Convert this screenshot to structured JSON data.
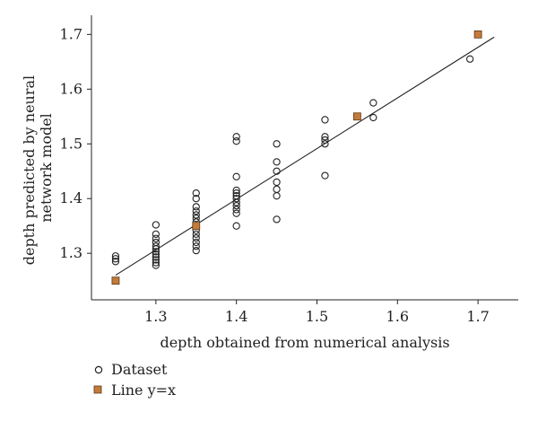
{
  "chart_data": {
    "type": "scatter",
    "xlabel": "depth obtained from numerical analysis",
    "ylabel_lines": [
      "depth predicted by neural",
      "network model"
    ],
    "xlim": [
      1.22,
      1.75
    ],
    "ylim": [
      1.215,
      1.735
    ],
    "xticks": [
      "1.3",
      "1.4",
      "1.5",
      "1.6",
      "1.7"
    ],
    "yticks": [
      "1.3",
      "1.4",
      "1.5",
      "1.6",
      "1.7"
    ],
    "grid": false,
    "legend_position": "bottom-left, below plot",
    "colors": {
      "line_marker": "#c47a3a",
      "line_marker_edge": "#5a3a1a",
      "dataset_edge": "#222222",
      "axis": "#222222"
    },
    "series": [
      {
        "name": "Dataset",
        "marker": "open-circle",
        "points": [
          [
            1.25,
            1.285
          ],
          [
            1.25,
            1.29
          ],
          [
            1.25,
            1.295
          ],
          [
            1.3,
            1.278
          ],
          [
            1.3,
            1.283
          ],
          [
            1.3,
            1.288
          ],
          [
            1.3,
            1.293
          ],
          [
            1.3,
            1.298
          ],
          [
            1.3,
            1.303
          ],
          [
            1.3,
            1.308
          ],
          [
            1.3,
            1.313
          ],
          [
            1.3,
            1.32
          ],
          [
            1.3,
            1.327
          ],
          [
            1.3,
            1.335
          ],
          [
            1.3,
            1.352
          ],
          [
            1.35,
            1.305
          ],
          [
            1.35,
            1.313
          ],
          [
            1.35,
            1.32
          ],
          [
            1.35,
            1.328
          ],
          [
            1.35,
            1.335
          ],
          [
            1.35,
            1.342
          ],
          [
            1.35,
            1.35
          ],
          [
            1.35,
            1.357
          ],
          [
            1.35,
            1.364
          ],
          [
            1.35,
            1.37
          ],
          [
            1.35,
            1.377
          ],
          [
            1.35,
            1.385
          ],
          [
            1.35,
            1.4
          ],
          [
            1.35,
            1.41
          ],
          [
            1.4,
            1.35
          ],
          [
            1.4,
            1.373
          ],
          [
            1.4,
            1.38
          ],
          [
            1.4,
            1.387
          ],
          [
            1.4,
            1.393
          ],
          [
            1.4,
            1.4
          ],
          [
            1.4,
            1.405
          ],
          [
            1.4,
            1.41
          ],
          [
            1.4,
            1.415
          ],
          [
            1.4,
            1.44
          ],
          [
            1.4,
            1.505
          ],
          [
            1.4,
            1.513
          ],
          [
            1.45,
            1.362
          ],
          [
            1.45,
            1.405
          ],
          [
            1.45,
            1.417
          ],
          [
            1.45,
            1.43
          ],
          [
            1.45,
            1.45
          ],
          [
            1.45,
            1.467
          ],
          [
            1.45,
            1.5
          ],
          [
            1.51,
            1.442
          ],
          [
            1.51,
            1.5
          ],
          [
            1.51,
            1.507
          ],
          [
            1.51,
            1.513
          ],
          [
            1.51,
            1.544
          ],
          [
            1.57,
            1.548
          ],
          [
            1.57,
            1.575
          ],
          [
            1.69,
            1.655
          ]
        ]
      },
      {
        "name": "Line y=x",
        "marker": "filled-square",
        "points": [
          [
            1.25,
            1.25
          ],
          [
            1.35,
            1.35
          ],
          [
            1.55,
            1.55
          ],
          [
            1.7,
            1.7
          ]
        ],
        "fit_line": {
          "x1": 1.25,
          "y1": 1.26,
          "x2": 1.72,
          "y2": 1.695
        }
      }
    ]
  }
}
